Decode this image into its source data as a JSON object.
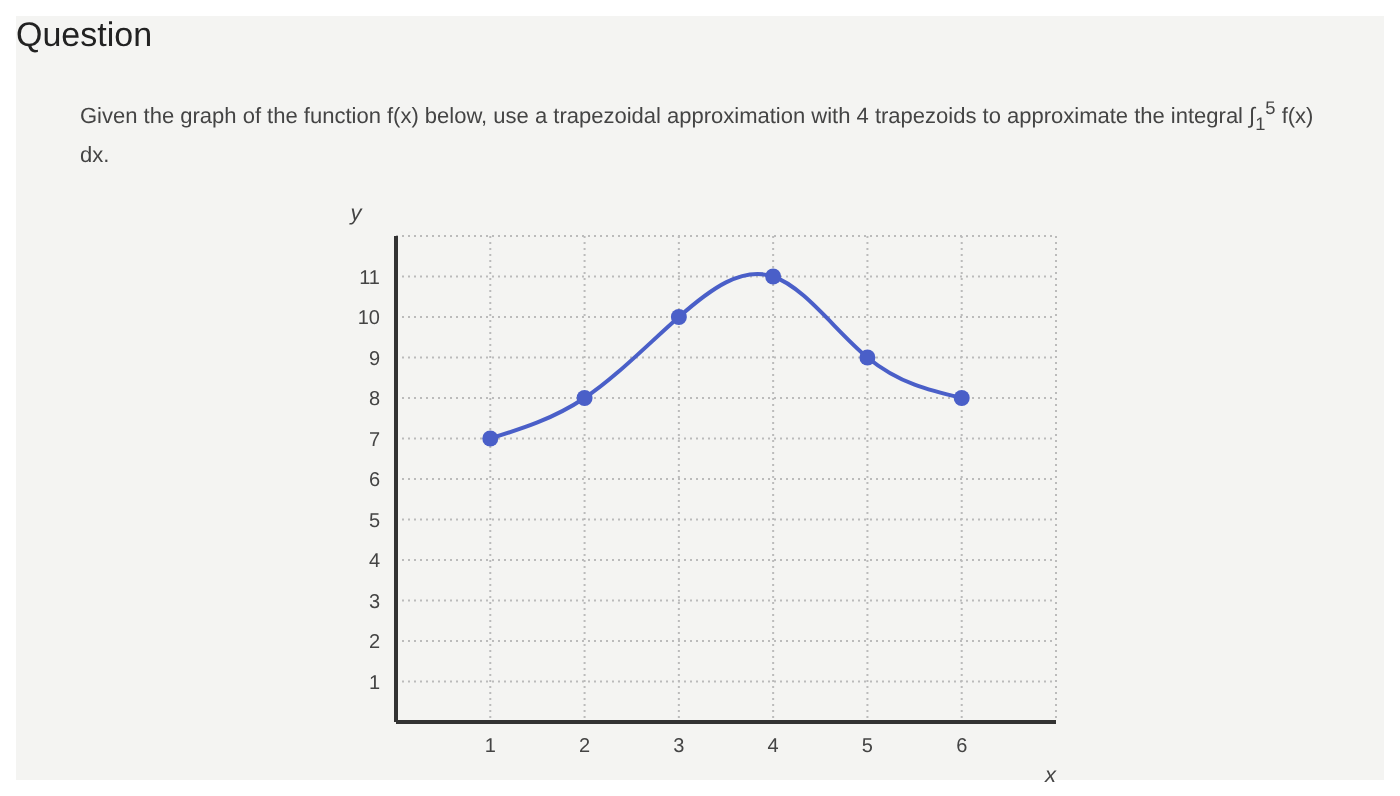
{
  "chart_data": {
    "type": "line",
    "title": "Question",
    "subtitle": "Given the graph of the function f(x) below, use a trapezoidal approximation with 4 trapezoids to approximate the integral ∫$_{1}$$^{5}$ f(x) dx.",
    "xlabel": "x",
    "ylabel": "y",
    "x": [
      1,
      2,
      3,
      4,
      5,
      6
    ],
    "series": [
      {
        "color": "#4a5fc8",
        "values": [
          7,
          8,
          10,
          11,
          9,
          8
        ]
      }
    ],
    "xlim": [
      0,
      7
    ],
    "xticks": [
      1,
      2,
      3,
      4,
      5,
      6
    ],
    "ylim": [
      0,
      12
    ],
    "yticks": [
      1,
      2,
      3,
      4,
      5,
      6,
      7,
      8,
      9,
      10,
      11
    ],
    "grid": true,
    "marker": "circle",
    "line_style": "solid"
  }
}
